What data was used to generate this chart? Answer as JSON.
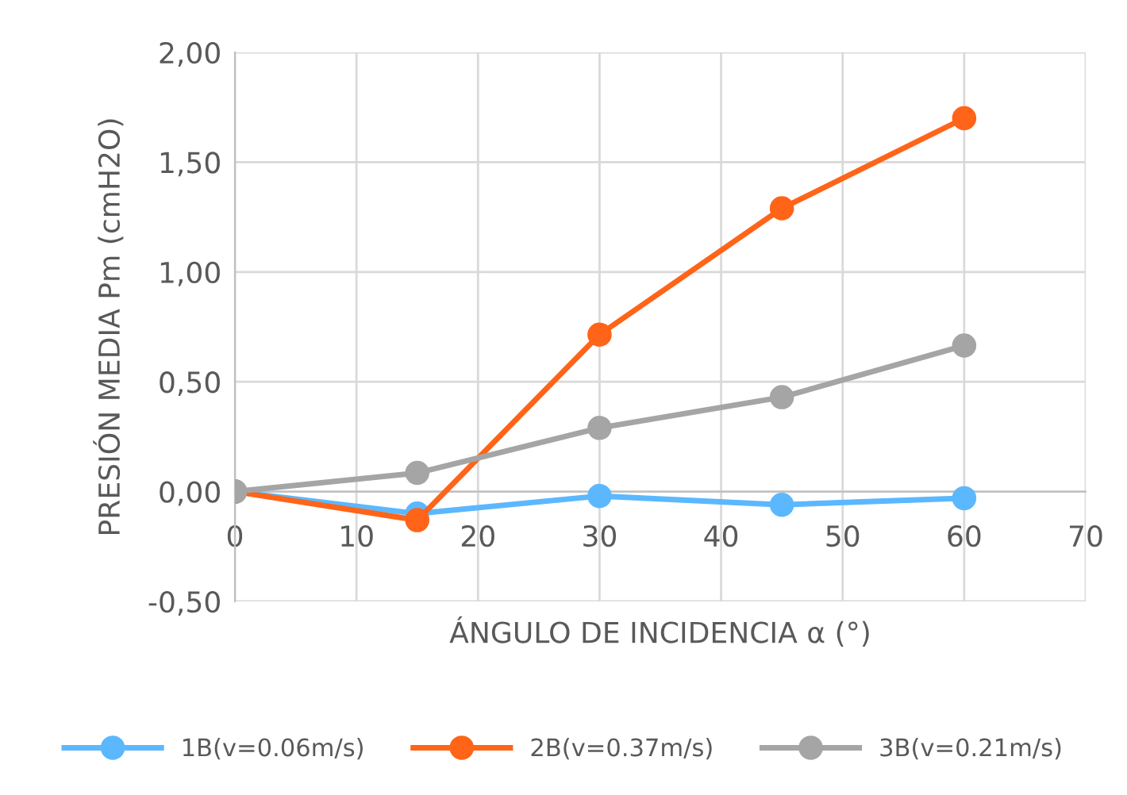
{
  "chart_data": {
    "type": "line",
    "xlabel": "ÁNGULO DE INCIDENCIA α (°)",
    "ylabel": "PRESIÓN MEDIA Pm (cmH2O)",
    "x": [
      0,
      15,
      30,
      45,
      60
    ],
    "series": [
      {
        "name": "1B(v=0.06m/s)",
        "color": "#5bb8ff",
        "values": [
          0,
          -0.1,
          -0.02,
          -0.06,
          -0.03
        ]
      },
      {
        "name": "2B(v=0.37m/s)",
        "color": "#ff6418",
        "values": [
          0,
          -0.13,
          0.715,
          1.29,
          1.7
        ]
      },
      {
        "name": "3B(v=0.21m/s)",
        "color": "#a5a5a5",
        "values": [
          0,
          0.085,
          0.29,
          0.43,
          0.665
        ]
      }
    ],
    "xlim": [
      0,
      70
    ],
    "xticks": [
      0,
      10,
      20,
      30,
      40,
      50,
      60,
      70
    ],
    "ylim": [
      -0.5,
      2
    ],
    "yticks": [
      {
        "value": -0.5,
        "label": "-0,50"
      },
      {
        "value": 0,
        "label": "0,00"
      },
      {
        "value": 0.5,
        "label": "0,50"
      },
      {
        "value": 1,
        "label": "1,00"
      },
      {
        "value": 1.5,
        "label": "1,50"
      },
      {
        "value": 2,
        "label": "2,00"
      }
    ],
    "grid": true,
    "legend": "bottom",
    "marker": "circle",
    "line_style": "solid"
  }
}
